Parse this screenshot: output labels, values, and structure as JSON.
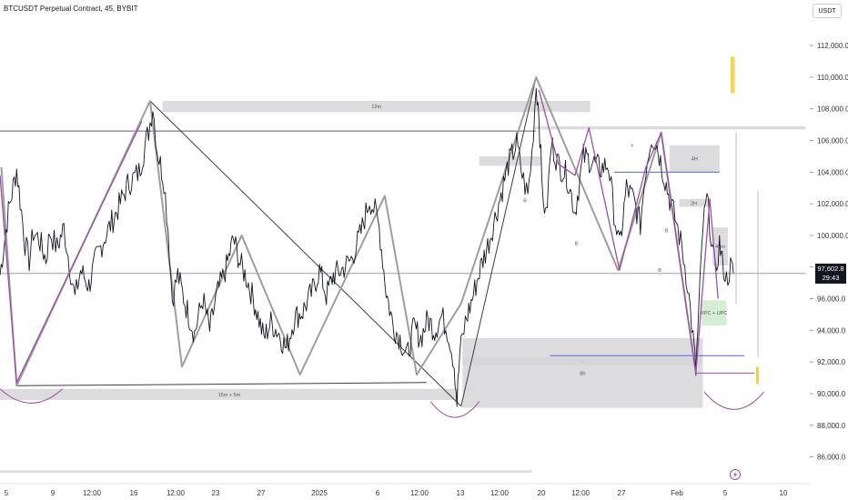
{
  "header": {
    "title": "BTCUSDT Perpetual Contract, 45, BYBIT",
    "unit": "USDT"
  },
  "last_price": {
    "value": "97,602.8",
    "countdown": "29:43"
  },
  "chart_data": {
    "type": "line",
    "title": "BTCUSDT Perpetual Contract, 45, BYBIT",
    "xlabel": "",
    "ylabel": "USDT",
    "ylim": [
      85000,
      113500
    ],
    "grid": false,
    "x_ticks": [
      "5",
      "9",
      "12:00",
      "16",
      "12:00",
      "23",
      "27",
      "2025",
      "6",
      "12:00",
      "13",
      "12:00",
      "20",
      "12:00",
      "27",
      "Feb",
      "5",
      "10"
    ],
    "y_ticks": [
      86000,
      88000,
      90000,
      92000,
      94000,
      96000,
      98000,
      100000,
      102000,
      104000,
      106000,
      108000,
      110000,
      112000
    ],
    "y_tick_labels": [
      "86,000.0",
      "88,000.0",
      "90,000.0",
      "92,000.0",
      "94,000.0",
      "96,000.0",
      "98,000.0",
      "100,000.0",
      "102,000.0",
      "104,000.0",
      "106,000.0",
      "108,000.0",
      "110,000.0",
      "112,000.0"
    ],
    "price_path": [
      [
        0,
        97500
      ],
      [
        0.6,
        101500
      ],
      [
        1.2,
        104200
      ],
      [
        1.8,
        99500
      ],
      [
        2.1,
        98400
      ],
      [
        2.4,
        100200
      ],
      [
        2.8,
        99800
      ],
      [
        3.3,
        98500
      ],
      [
        3.6,
        100200
      ],
      [
        4.1,
        99200
      ],
      [
        4.6,
        100500
      ],
      [
        5.0,
        98200
      ],
      [
        5.4,
        96000
      ],
      [
        5.8,
        97800
      ],
      [
        6.4,
        96800
      ],
      [
        6.9,
        98500
      ],
      [
        7.6,
        100000
      ],
      [
        8.4,
        101500
      ],
      [
        9.2,
        103200
      ],
      [
        10.0,
        104000
      ],
      [
        10.7,
        106600
      ],
      [
        11.0,
        108200
      ],
      [
        11.3,
        105500
      ],
      [
        11.8,
        103500
      ],
      [
        12.1,
        100500
      ],
      [
        12.4,
        96000
      ],
      [
        12.8,
        97500
      ],
      [
        13.4,
        95500
      ],
      [
        14.0,
        93800
      ],
      [
        14.6,
        96000
      ],
      [
        15.1,
        94000
      ],
      [
        15.6,
        96200
      ],
      [
        16.3,
        98000
      ],
      [
        16.8,
        99800
      ],
      [
        17.3,
        98200
      ],
      [
        17.8,
        97200
      ],
      [
        18.4,
        95500
      ],
      [
        19.0,
        93500
      ],
      [
        19.5,
        94500
      ],
      [
        20.1,
        93800
      ],
      [
        20.6,
        92800
      ],
      [
        21.2,
        94800
      ],
      [
        21.8,
        95200
      ],
      [
        22.5,
        96500
      ],
      [
        23.0,
        97800
      ],
      [
        23.5,
        96200
      ],
      [
        24.0,
        97500
      ],
      [
        24.6,
        97800
      ],
      [
        25.3,
        98500
      ],
      [
        26.0,
        100200
      ],
      [
        26.6,
        102300
      ],
      [
        27.0,
        101500
      ],
      [
        27.3,
        100500
      ],
      [
        27.8,
        96500
      ],
      [
        28.3,
        94300
      ],
      [
        28.8,
        93500
      ],
      [
        29.3,
        92300
      ],
      [
        29.8,
        94200
      ],
      [
        30.3,
        93500
      ],
      [
        30.8,
        94700
      ],
      [
        31.3,
        94000
      ],
      [
        31.8,
        94900
      ],
      [
        32.3,
        93800
      ],
      [
        32.7,
        91900
      ],
      [
        32.9,
        89500
      ],
      [
        33.1,
        92500
      ],
      [
        33.5,
        94500
      ],
      [
        34.0,
        96000
      ],
      [
        34.6,
        98000
      ],
      [
        35.2,
        99600
      ],
      [
        35.9,
        102000
      ],
      [
        36.6,
        104500
      ],
      [
        37.2,
        105800
      ],
      [
        37.6,
        103800
      ],
      [
        38.0,
        102500
      ],
      [
        38.3,
        105200
      ],
      [
        38.6,
        109500
      ],
      [
        38.8,
        107800
      ],
      [
        39.0,
        103500
      ],
      [
        39.3,
        101000
      ],
      [
        39.7,
        105800
      ],
      [
        40.2,
        104500
      ],
      [
        40.8,
        103800
      ],
      [
        41.4,
        101500
      ],
      [
        42.0,
        105000
      ],
      [
        42.6,
        104700
      ],
      [
        43.2,
        104200
      ],
      [
        43.8,
        104500
      ],
      [
        44.2,
        101500
      ],
      [
        44.6,
        99200
      ],
      [
        45.1,
        103000
      ],
      [
        45.6,
        102300
      ],
      [
        46.1,
        100700
      ],
      [
        46.5,
        104300
      ],
      [
        46.9,
        106300
      ],
      [
        47.3,
        105700
      ],
      [
        47.8,
        103800
      ],
      [
        48.3,
        102000
      ],
      [
        48.7,
        100800
      ],
      [
        49.1,
        99200
      ],
      [
        49.5,
        97000
      ],
      [
        49.9,
        93500
      ],
      [
        50.1,
        91400
      ],
      [
        50.3,
        95000
      ],
      [
        50.6,
        100500
      ],
      [
        50.9,
        102300
      ],
      [
        51.2,
        100000
      ],
      [
        51.5,
        97500
      ],
      [
        51.8,
        99500
      ],
      [
        52.0,
        98300
      ],
      [
        52.3,
        97200
      ],
      [
        52.6,
        98000
      ],
      [
        52.8,
        97600
      ]
    ],
    "zigzag": [
      [
        0.1,
        104300
      ],
      [
        1.2,
        90500
      ],
      [
        10.8,
        108500
      ],
      [
        13.1,
        91700
      ],
      [
        17.4,
        100000
      ],
      [
        21.6,
        91200
      ],
      [
        27.7,
        102500
      ],
      [
        30.0,
        91200
      ],
      [
        33.2,
        95700
      ],
      [
        38.6,
        110000
      ],
      [
        44.5,
        97800
      ],
      [
        47.6,
        106500
      ],
      [
        50.1,
        91300
      ]
    ],
    "wedge_lines": [
      [
        [
          1.2,
          90500
        ],
        [
          10.8,
          108500
        ]
      ],
      [
        [
          10.8,
          108500
        ],
        [
          33.2,
          89200
        ]
      ],
      [
        [
          33.2,
          89200
        ],
        [
          38.6,
          110000
        ]
      ],
      [
        [
          1.2,
          90500
        ],
        [
          30.7,
          90700
        ]
      ]
    ],
    "purple_lines": [
      [
        [
          0,
          103800
        ],
        [
          1.2,
          90700
        ],
        [
          10.2,
          107200
        ]
      ],
      [
        [
          38.8,
          109200
        ],
        [
          40.2,
          104500
        ],
        [
          41.4,
          103800
        ],
        [
          42.4,
          106800
        ],
        [
          44.6,
          97800
        ],
        [
          46.5,
          104300
        ],
        [
          47.6,
          106500
        ],
        [
          50.1,
          91300
        ],
        [
          51.1,
          102300
        ],
        [
          51.7,
          96000
        ]
      ]
    ],
    "zones": [
      {
        "label": "12m",
        "x0": 11.7,
        "x1": 42.5,
        "y0": 107800,
        "y1": 108500
      },
      {
        "label": "4H",
        "x0": 48.2,
        "x1": 51.8,
        "y0": 104000,
        "y1": 105700
      },
      {
        "label": "2H",
        "x0": 48.9,
        "x1": 51.0,
        "y0": 101800,
        "y1": 102300
      },
      {
        "label": "45m",
        "x0": 51.3,
        "x1": 52.4,
        "y0": 98100,
        "y1": 100500
      },
      {
        "label": "pc",
        "x0": 33.3,
        "x1": 50.6,
        "y0": 91800,
        "y1": 92300
      },
      {
        "label": "8h",
        "x0": 33.3,
        "x1": 50.6,
        "y0": 89100,
        "y1": 93500
      },
      {
        "label": "15m + 5m",
        "x0": 0,
        "x1": 33.0,
        "y0": 89600,
        "y1": 90300
      },
      {
        "label": "",
        "x0": 34.5,
        "x1": 39.0,
        "y0": 104400,
        "y1": 105000
      },
      {
        "label": "",
        "x0": 38.5,
        "x1": 58.0,
        "y0": 106700,
        "y1": 106900
      },
      {
        "label": "",
        "x0": 0,
        "x1": 38.3,
        "y0": 85000,
        "y1": 85150
      }
    ],
    "highlights": [
      {
        "label": "RPC + UPC",
        "x0": 50.5,
        "x1": 52.3,
        "y0": 94300,
        "y1": 95900
      },
      {
        "label": "",
        "x0": 52.6,
        "x1": 52.9,
        "y0": 109000,
        "y1": 111300
      }
    ],
    "markers": [
      {
        "label": "B",
        "x": 37.8,
        "y": 102200
      },
      {
        "label": "B",
        "x": 41.5,
        "y": 99500
      },
      {
        "label": "B",
        "x": 47.5,
        "y": 97800
      },
      {
        "label": "B",
        "x": 48.0,
        "y": 100300
      },
      {
        "label": "x",
        "x": 45.5,
        "y": 105700
      }
    ],
    "hlines": [
      {
        "y": 106600,
        "color": "#5a5f72",
        "from": 0,
        "to": 38.6
      },
      {
        "y": 97600,
        "color": "#9a9da6",
        "from": 0,
        "to": 58.0
      },
      {
        "y": 104000,
        "color": "#4a6dd6",
        "from": 44.2,
        "to": 51.8
      },
      {
        "y": 92400,
        "color": "#4a6dd6",
        "from": 39.6,
        "to": 53.6
      },
      {
        "y": 91300,
        "color": "#9c4fa8",
        "from": 50.1,
        "to": 54.3
      }
    ],
    "arcs": [
      {
        "x0": 0,
        "x1": 4.5,
        "y": 90300,
        "depth": 900,
        "color": "#9c4fa8"
      },
      {
        "x0": 31.0,
        "x1": 34.5,
        "y": 89500,
        "depth": 1000,
        "color": "#9c4fa8"
      },
      {
        "x0": 50.7,
        "x1": 55.0,
        "y": 90100,
        "depth": 1100,
        "color": "#9c4fa8"
      }
    ]
  },
  "colors": {
    "price": "#131722",
    "zigzag": "#9e9e9e",
    "zone": "#d6d6d8",
    "accent_purple": "#9c4fa8",
    "accent_blue": "#4a6dd6",
    "yellow": "#f5d040",
    "green_zone": "#cfeccf"
  },
  "icons": {
    "lightning": "lightning-icon"
  }
}
